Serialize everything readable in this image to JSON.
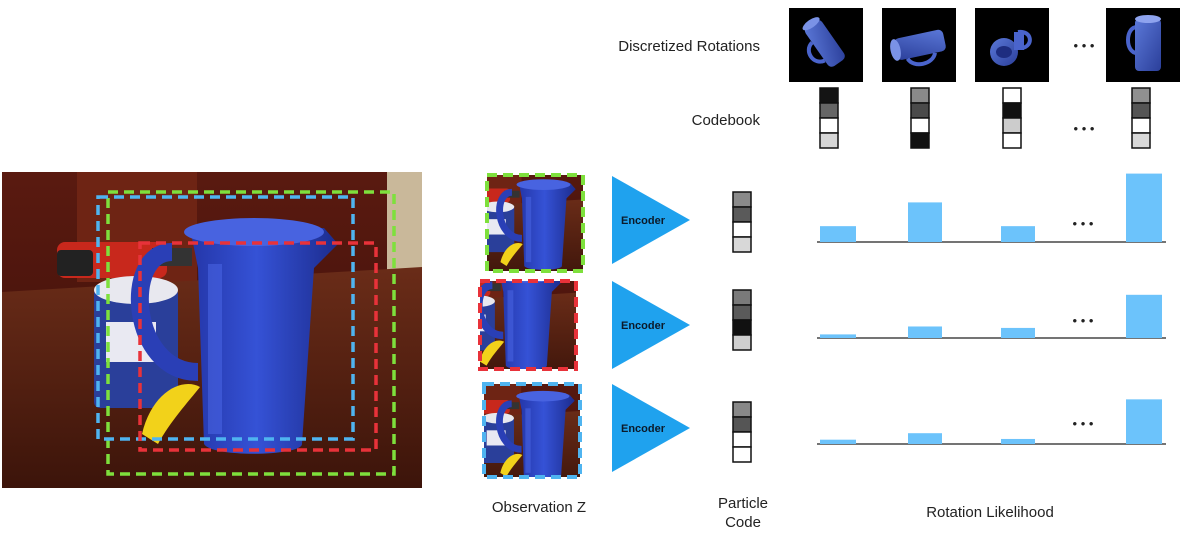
{
  "labels": {
    "discretized_rotations": "Discretized Rotations",
    "codebook": "Codebook",
    "observation": "Observation Z",
    "particle_code_line1": "Particle",
    "particle_code_line2": "Code",
    "rotation_likelihood": "Rotation Likelihood",
    "encoder": "Encoder",
    "ellipsis": "• • •"
  },
  "colors": {
    "green_dash": "#7ee03c",
    "red_dash": "#e8323a",
    "blue_dash": "#4fb4f0",
    "encoder_fill": "#1fa2ee",
    "bar_fill": "#6cc3fb",
    "pitcher": "#2f49c8"
  },
  "codebook": [
    [
      "#141414",
      "#666666",
      "#ffffff",
      "#d6d6d6"
    ],
    [
      "#8a8a8a",
      "#4a4a4a",
      "#ffffff",
      "#111111"
    ],
    [
      "#ffffff",
      "#111111",
      "#cccccc",
      "#ffffff"
    ],
    [
      "#909090",
      "#555555",
      "#ffffff",
      "#d8d8d8"
    ]
  ],
  "particle_codes": [
    [
      "#8a8a8a",
      "#5a5a5a",
      "#ffffff",
      "#d8d8d8"
    ],
    [
      "#7a7a7a",
      "#5a5a5a",
      "#111111",
      "#cfcfcf"
    ],
    [
      "#888888",
      "#555555",
      "#ffffff",
      "#ffffff"
    ]
  ],
  "likelihood": [
    [
      0.22,
      0.55,
      0.22,
      0.95
    ],
    [
      0.05,
      0.16,
      0.14,
      0.6
    ],
    [
      0.06,
      0.15,
      0.07,
      0.62
    ]
  ],
  "icons": {
    "scene": "rgbd-scene-photo-icon",
    "rotation_render": "pitcher-render-icon",
    "crop": "observation-crop-icon"
  }
}
